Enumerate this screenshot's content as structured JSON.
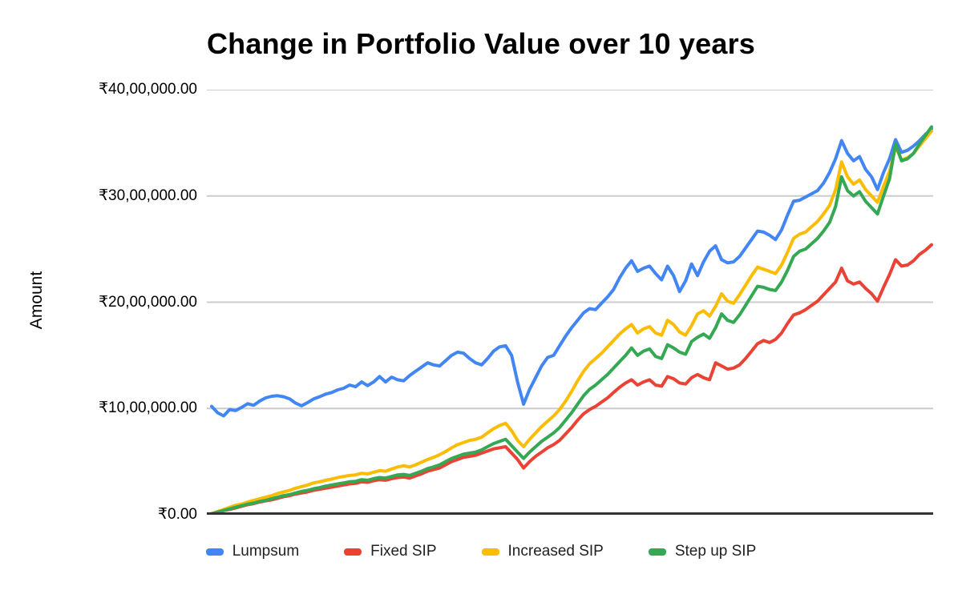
{
  "chart_data": {
    "type": "line",
    "title": "Change in Portfolio Value over 10 years",
    "ylabel": "Amount",
    "xlabel": "",
    "unit": "values in INR lakh (1 lakh = ₹1,00,000); x = months over 10 years (no x-axis labels shown)",
    "ylim": [
      0,
      40
    ],
    "grid": true,
    "legend_position": "bottom",
    "y_ticks": [
      {
        "value": 0,
        "label": "₹0.00"
      },
      {
        "value": 10,
        "label": "₹10,00,000.00"
      },
      {
        "value": 20,
        "label": "₹20,00,000.00"
      },
      {
        "value": 30,
        "label": "₹30,00,000.00"
      },
      {
        "value": 40,
        "label": "₹40,00,000.00"
      }
    ],
    "series": [
      {
        "name": "Lumpsum",
        "color": "#4285F4",
        "values": [
          10.2,
          9.6,
          9.3,
          9.9,
          9.8,
          10.1,
          10.45,
          10.3,
          10.7,
          11.0,
          11.15,
          11.2,
          11.1,
          10.9,
          10.5,
          10.25,
          10.55,
          10.9,
          11.1,
          11.35,
          11.5,
          11.75,
          11.9,
          12.2,
          12.05,
          12.5,
          12.15,
          12.5,
          13.0,
          12.5,
          12.95,
          12.7,
          12.6,
          13.1,
          13.5,
          13.9,
          14.3,
          14.1,
          14.0,
          14.5,
          15.0,
          15.3,
          15.2,
          14.7,
          14.3,
          14.1,
          14.7,
          15.4,
          15.8,
          15.9,
          15.0,
          12.5,
          10.4,
          11.8,
          12.9,
          14.0,
          14.8,
          15.0,
          15.9,
          16.8,
          17.6,
          18.3,
          19.0,
          19.4,
          19.3,
          19.9,
          20.5,
          21.2,
          22.3,
          23.2,
          23.9,
          22.9,
          23.2,
          23.4,
          22.7,
          22.1,
          23.4,
          22.5,
          21.0,
          22.0,
          23.6,
          22.5,
          23.8,
          24.8,
          25.3,
          24.0,
          23.7,
          23.8,
          24.3,
          25.1,
          25.9,
          26.7,
          26.6,
          26.3,
          25.9,
          26.8,
          28.2,
          29.5,
          29.6,
          29.9,
          30.2,
          30.5,
          31.2,
          32.2,
          33.5,
          35.2,
          34.0,
          33.3,
          33.7,
          32.5,
          31.8,
          30.6,
          32.2,
          33.5,
          35.3,
          34.1,
          34.3,
          34.7,
          35.2,
          35.8,
          36.3
        ]
      },
      {
        "name": "Fixed SIP",
        "color": "#EA4335",
        "values": [
          0.1,
          0.25,
          0.4,
          0.5,
          0.65,
          0.8,
          0.95,
          1.05,
          1.2,
          1.3,
          1.4,
          1.55,
          1.7,
          1.8,
          1.95,
          2.05,
          2.15,
          2.3,
          2.4,
          2.5,
          2.6,
          2.7,
          2.8,
          2.9,
          2.95,
          3.1,
          3.05,
          3.2,
          3.3,
          3.25,
          3.4,
          3.5,
          3.55,
          3.45,
          3.65,
          3.85,
          4.1,
          4.25,
          4.4,
          4.7,
          5.0,
          5.2,
          5.4,
          5.5,
          5.6,
          5.8,
          6.0,
          6.2,
          6.3,
          6.4,
          5.8,
          5.2,
          4.4,
          5.0,
          5.5,
          5.9,
          6.3,
          6.6,
          7.0,
          7.6,
          8.2,
          8.9,
          9.5,
          9.9,
          10.2,
          10.6,
          11.0,
          11.5,
          12.0,
          12.4,
          12.7,
          12.2,
          12.5,
          12.7,
          12.2,
          12.1,
          13.0,
          12.8,
          12.4,
          12.3,
          12.9,
          13.2,
          12.9,
          12.7,
          14.3,
          14.0,
          13.7,
          13.8,
          14.1,
          14.7,
          15.4,
          16.1,
          16.4,
          16.2,
          16.5,
          17.1,
          18.0,
          18.8,
          19.0,
          19.3,
          19.7,
          20.1,
          20.7,
          21.3,
          21.9,
          23.2,
          22.0,
          21.7,
          21.9,
          21.3,
          20.8,
          20.1,
          21.4,
          22.6,
          24.0,
          23.4,
          23.5,
          23.9,
          24.5,
          24.9,
          25.4
        ]
      },
      {
        "name": "Increased SIP",
        "color": "#FBBC04",
        "values": [
          0.1,
          0.3,
          0.5,
          0.7,
          0.9,
          1.0,
          1.2,
          1.35,
          1.5,
          1.65,
          1.8,
          2.0,
          2.15,
          2.3,
          2.5,
          2.65,
          2.8,
          3.0,
          3.1,
          3.25,
          3.35,
          3.5,
          3.6,
          3.7,
          3.75,
          3.9,
          3.85,
          4.0,
          4.15,
          4.1,
          4.3,
          4.5,
          4.6,
          4.5,
          4.7,
          4.95,
          5.2,
          5.4,
          5.65,
          5.95,
          6.3,
          6.6,
          6.8,
          7.0,
          7.1,
          7.3,
          7.7,
          8.1,
          8.4,
          8.6,
          7.9,
          7.0,
          6.4,
          7.1,
          7.7,
          8.3,
          8.8,
          9.3,
          9.9,
          10.7,
          11.6,
          12.6,
          13.5,
          14.2,
          14.7,
          15.2,
          15.8,
          16.4,
          17.0,
          17.5,
          17.9,
          17.1,
          17.5,
          17.7,
          17.1,
          16.9,
          18.3,
          17.9,
          17.2,
          16.9,
          17.8,
          18.9,
          19.2,
          18.7,
          19.6,
          20.8,
          20.1,
          19.9,
          20.7,
          21.6,
          22.5,
          23.3,
          23.1,
          22.9,
          22.7,
          23.5,
          24.7,
          26.0,
          26.4,
          26.6,
          27.1,
          27.6,
          28.3,
          29.1,
          30.6,
          33.2,
          31.8,
          31.1,
          31.5,
          30.6,
          30.0,
          29.4,
          30.9,
          32.3,
          34.6,
          33.4,
          33.6,
          34.0,
          34.7,
          35.4,
          36.1
        ]
      },
      {
        "name": "Step up SIP",
        "color": "#34A853",
        "values": [
          0.1,
          0.25,
          0.4,
          0.55,
          0.7,
          0.85,
          1.0,
          1.1,
          1.25,
          1.35,
          1.5,
          1.65,
          1.8,
          1.9,
          2.05,
          2.2,
          2.3,
          2.45,
          2.55,
          2.7,
          2.8,
          2.9,
          3.0,
          3.1,
          3.15,
          3.3,
          3.25,
          3.4,
          3.5,
          3.45,
          3.6,
          3.75,
          3.8,
          3.7,
          3.9,
          4.1,
          4.35,
          4.5,
          4.7,
          5.0,
          5.3,
          5.5,
          5.7,
          5.8,
          5.9,
          6.1,
          6.4,
          6.7,
          6.9,
          7.1,
          6.5,
          5.9,
          5.3,
          5.9,
          6.4,
          6.9,
          7.3,
          7.7,
          8.2,
          8.9,
          9.6,
          10.4,
          11.2,
          11.8,
          12.2,
          12.7,
          13.2,
          13.8,
          14.4,
          15.0,
          15.7,
          15.0,
          15.4,
          15.6,
          14.9,
          14.7,
          16.0,
          15.7,
          15.3,
          15.1,
          16.3,
          16.7,
          17.0,
          16.6,
          17.6,
          18.9,
          18.3,
          18.1,
          18.8,
          19.7,
          20.6,
          21.5,
          21.4,
          21.2,
          21.1,
          21.9,
          23.0,
          24.3,
          24.8,
          25.0,
          25.5,
          26.0,
          26.7,
          27.5,
          29.0,
          31.8,
          30.5,
          30.0,
          30.4,
          29.5,
          28.9,
          28.3,
          30.0,
          31.6,
          34.9,
          33.3,
          33.5,
          34.0,
          34.9,
          35.7,
          36.5
        ]
      }
    ],
    "style": {
      "gridline_color": "#cccccc",
      "baseline_color": "#333333",
      "line_width": 4,
      "background": "#ffffff",
      "text_color": "#000000"
    }
  }
}
